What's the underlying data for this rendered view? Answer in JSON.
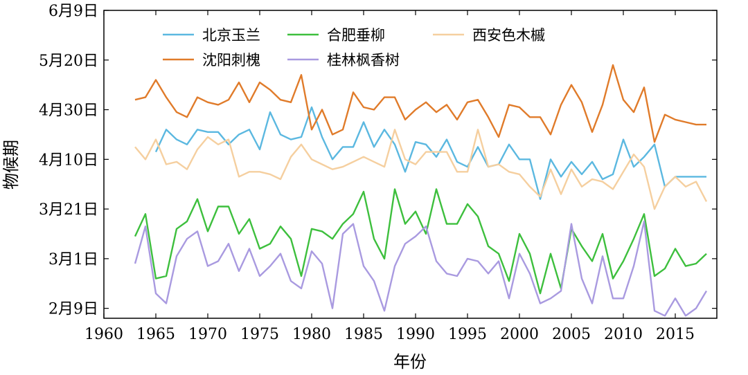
{
  "chart_data": {
    "type": "line",
    "xlabel": "年份",
    "ylabel": "物候期",
    "xlim": [
      1960,
      2019
    ],
    "x_ticks": [
      1960,
      1965,
      1970,
      1975,
      1980,
      1985,
      1990,
      1995,
      2000,
      2005,
      2010,
      2015
    ],
    "y_ticks": [
      {
        "label": "2月9日",
        "value": 40
      },
      {
        "label": "3月1日",
        "value": 60
      },
      {
        "label": "3月21日",
        "value": 80
      },
      {
        "label": "4月10日",
        "value": 100
      },
      {
        "label": "4月30日",
        "value": 120
      },
      {
        "label": "5月20日",
        "value": 140
      },
      {
        "label": "6月9日",
        "value": 160
      }
    ],
    "ylim": [
      36,
      160
    ],
    "ylim_note": "day of year",
    "legend_position": "top",
    "series": [
      {
        "name": "北京玉兰",
        "color": "#5bb8e0",
        "x": [
          1965,
          1966,
          1967,
          1968,
          1969,
          1970,
          1971,
          1972,
          1973,
          1974,
          1975,
          1976,
          1977,
          1978,
          1979,
          1980,
          1981,
          1982,
          1983,
          1984,
          1985,
          1986,
          1987,
          1988,
          1989,
          1990,
          1991,
          1992,
          1993,
          1994,
          1995,
          1996,
          1997,
          1998,
          1999,
          2000,
          2001,
          2002,
          2003,
          2004,
          2005,
          2006,
          2007,
          2008,
          2009,
          2010,
          2011,
          2012,
          2013,
          2014,
          2015,
          2016,
          2017,
          2018
        ],
        "values": [
          103,
          112,
          108,
          106,
          112,
          111,
          111,
          106,
          110,
          112,
          104,
          119,
          110,
          108,
          109,
          121,
          109,
          100,
          105,
          105,
          115,
          105,
          112,
          106,
          95,
          107,
          106,
          101,
          108,
          99,
          97,
          105,
          97,
          98,
          106,
          100,
          100,
          84,
          100,
          93,
          99,
          94,
          99,
          92,
          94,
          108,
          97,
          101,
          106,
          89,
          93,
          93,
          93,
          93
        ]
      },
      {
        "name": "沈阳刺槐",
        "color": "#e07b2a",
        "x": [
          1963,
          1964,
          1965,
          1966,
          1967,
          1968,
          1969,
          1970,
          1971,
          1972,
          1973,
          1974,
          1975,
          1976,
          1977,
          1978,
          1979,
          1980,
          1981,
          1982,
          1983,
          1984,
          1985,
          1986,
          1987,
          1988,
          1989,
          1990,
          1991,
          1992,
          1993,
          1994,
          1995,
          1996,
          1997,
          1998,
          1999,
          2000,
          2001,
          2002,
          2003,
          2004,
          2005,
          2006,
          2007,
          2008,
          2009,
          2010,
          2011,
          2012,
          2013,
          2014,
          2015,
          2016,
          2017,
          2018
        ],
        "values": [
          124,
          125,
          132,
          125,
          119,
          117,
          125,
          123,
          122,
          124,
          131,
          123,
          131,
          128,
          124,
          123,
          134,
          112,
          120,
          110,
          112,
          127,
          121,
          120,
          125,
          125,
          116,
          120,
          123,
          119,
          122,
          116,
          123,
          124,
          117,
          109,
          122,
          121,
          117,
          117,
          110,
          122,
          130,
          123,
          111,
          122,
          138,
          124,
          119,
          129,
          107,
          118,
          116,
          115,
          114,
          114
        ]
      },
      {
        "name": "合肥垂柳",
        "color": "#3dbf3d",
        "x": [
          1963,
          1964,
          1965,
          1966,
          1967,
          1968,
          1969,
          1970,
          1971,
          1972,
          1973,
          1974,
          1975,
          1976,
          1977,
          1978,
          1979,
          1980,
          1981,
          1982,
          1983,
          1984,
          1985,
          1986,
          1987,
          1988,
          1989,
          1990,
          1991,
          1992,
          1993,
          1994,
          1995,
          1996,
          1997,
          1998,
          1999,
          2000,
          2001,
          2002,
          2003,
          2004,
          2005,
          2006,
          2007,
          2008,
          2009,
          2010,
          2011,
          2012,
          2013,
          2014,
          2015,
          2016,
          2017,
          2018
        ],
        "values": [
          69,
          78,
          52,
          53,
          72,
          75,
          84,
          71,
          81,
          81,
          70,
          76,
          64,
          66,
          73,
          68,
          53,
          72,
          71,
          68,
          74,
          78,
          87,
          68,
          60,
          88,
          74,
          79,
          70,
          88,
          74,
          74,
          82,
          77,
          65,
          62,
          51,
          70,
          62,
          46,
          62,
          48,
          72,
          65,
          59,
          70,
          52,
          59,
          68,
          78,
          53,
          56,
          64,
          57,
          58,
          62
        ]
      },
      {
        "name": "桂林枫香树",
        "color": "#a99ae0",
        "x": [
          1963,
          1964,
          1965,
          1966,
          1967,
          1968,
          1969,
          1970,
          1971,
          1972,
          1973,
          1974,
          1975,
          1976,
          1977,
          1978,
          1979,
          1980,
          1981,
          1982,
          1983,
          1984,
          1985,
          1986,
          1987,
          1988,
          1989,
          1990,
          1991,
          1992,
          1993,
          1994,
          1995,
          1996,
          1997,
          1998,
          1999,
          2000,
          2001,
          2002,
          2003,
          2004,
          2005,
          2006,
          2007,
          2008,
          2009,
          2010,
          2011,
          2012,
          2013,
          2014,
          2015,
          2016,
          2017,
          2018
        ],
        "values": [
          58,
          73,
          46,
          42,
          61,
          68,
          71,
          57,
          59,
          66,
          55,
          64,
          53,
          57,
          62,
          51,
          48,
          63,
          58,
          40,
          70,
          74,
          57,
          51,
          39,
          57,
          66,
          69,
          73,
          59,
          54,
          53,
          60,
          59,
          54,
          59,
          44,
          62,
          54,
          42,
          44,
          47,
          74,
          52,
          42,
          61,
          44,
          44,
          57,
          75,
          39,
          37,
          44,
          37,
          40,
          47
        ]
      },
      {
        "name": "西安色木槭",
        "color": "#f5cf9f",
        "x": [
          1963,
          1964,
          1965,
          1966,
          1967,
          1968,
          1969,
          1970,
          1971,
          1972,
          1973,
          1974,
          1975,
          1976,
          1977,
          1978,
          1979,
          1980,
          1981,
          1982,
          1983,
          1984,
          1985,
          1986,
          1987,
          1988,
          1989,
          1990,
          1991,
          1992,
          1993,
          1994,
          1995,
          1996,
          1997,
          1998,
          1999,
          2000,
          2001,
          2002,
          2003,
          2004,
          2005,
          2006,
          2007,
          2008,
          2009,
          2010,
          2011,
          2012,
          2013,
          2014,
          2015,
          2016,
          2017,
          2018
        ],
        "values": [
          105,
          100,
          108,
          98,
          99,
          96,
          104,
          109,
          106,
          108,
          93,
          95,
          95,
          94,
          92,
          101,
          106,
          100,
          98,
          96,
          97,
          99,
          101,
          99,
          97,
          112,
          100,
          98,
          103,
          103,
          103,
          95,
          95,
          112,
          97,
          98,
          95,
          94,
          89,
          85,
          96,
          86,
          96,
          89,
          92,
          91,
          88,
          95,
          102,
          97,
          80,
          89,
          93,
          89,
          91,
          83
        ]
      }
    ]
  }
}
